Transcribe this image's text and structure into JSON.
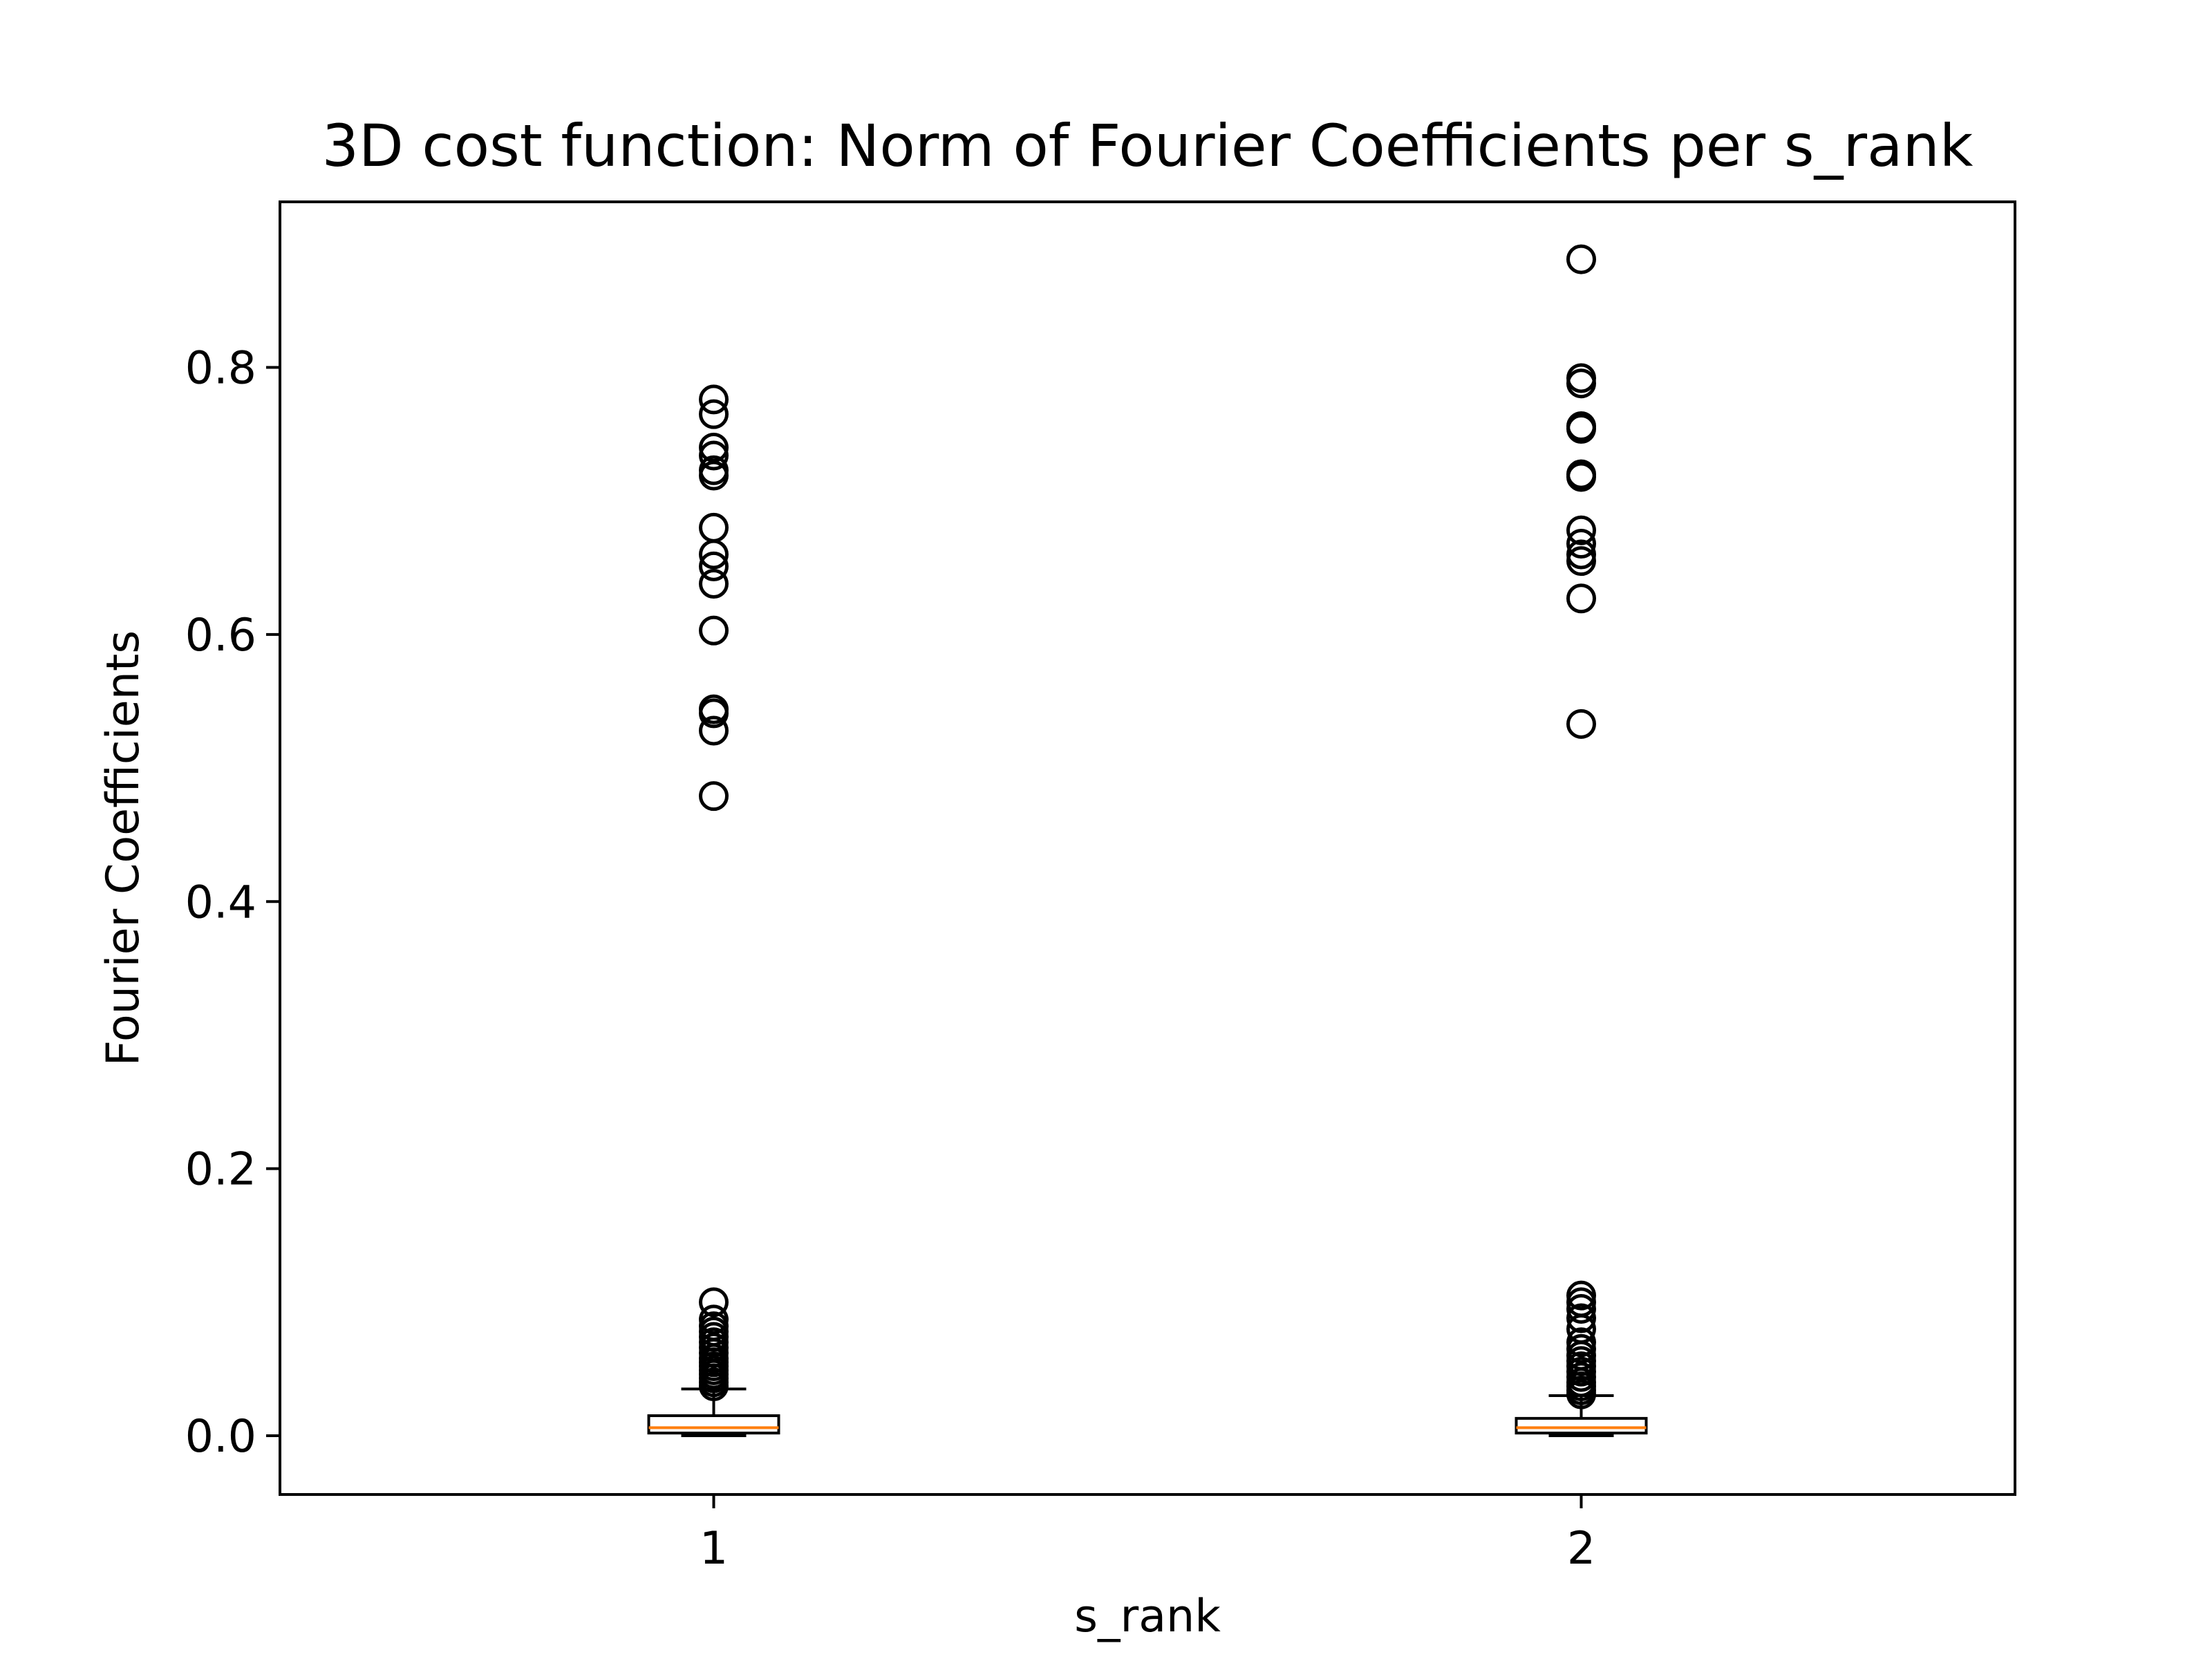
{
  "chart_data": {
    "type": "box",
    "title": "3D cost function: Norm of Fourier Coefficients per s_rank",
    "xlabel": "s_rank",
    "ylabel": "Fourier Coefficients",
    "xlim": [
      0.5,
      2.5
    ],
    "ylim": [
      -0.044,
      0.924
    ],
    "yticks": [
      0.0,
      0.2,
      0.4,
      0.6,
      0.8
    ],
    "ytick_labels": [
      "0.0",
      "0.2",
      "0.4",
      "0.6",
      "0.8"
    ],
    "categories": [
      "1",
      "2"
    ],
    "grid": false,
    "colors": {
      "box": "#000000",
      "median": "#ff7f0e",
      "background": "#ffffff"
    },
    "boxes": [
      {
        "category": "1",
        "position": 1,
        "whisker_low": 0.0,
        "q1": 0.002,
        "median": 0.006,
        "q3": 0.015,
        "whisker_high": 0.035,
        "outliers": [
          0.037,
          0.04,
          0.043,
          0.046,
          0.049,
          0.052,
          0.055,
          0.058,
          0.062,
          0.066,
          0.07,
          0.074,
          0.078,
          0.082,
          0.087,
          0.1,
          0.479,
          0.528,
          0.541,
          0.544,
          0.603,
          0.638,
          0.651,
          0.66,
          0.68,
          0.719,
          0.723,
          0.734,
          0.74,
          0.765,
          0.776
        ]
      },
      {
        "category": "2",
        "position": 2,
        "whisker_low": 0.0,
        "q1": 0.002,
        "median": 0.006,
        "q3": 0.013,
        "whisker_high": 0.03,
        "outliers": [
          0.031,
          0.034,
          0.037,
          0.04,
          0.044,
          0.048,
          0.052,
          0.056,
          0.06,
          0.065,
          0.07,
          0.08,
          0.088,
          0.095,
          0.1,
          0.105,
          0.533,
          0.627,
          0.655,
          0.66,
          0.668,
          0.678,
          0.718,
          0.72,
          0.754,
          0.756,
          0.788,
          0.792,
          0.881
        ]
      }
    ]
  }
}
